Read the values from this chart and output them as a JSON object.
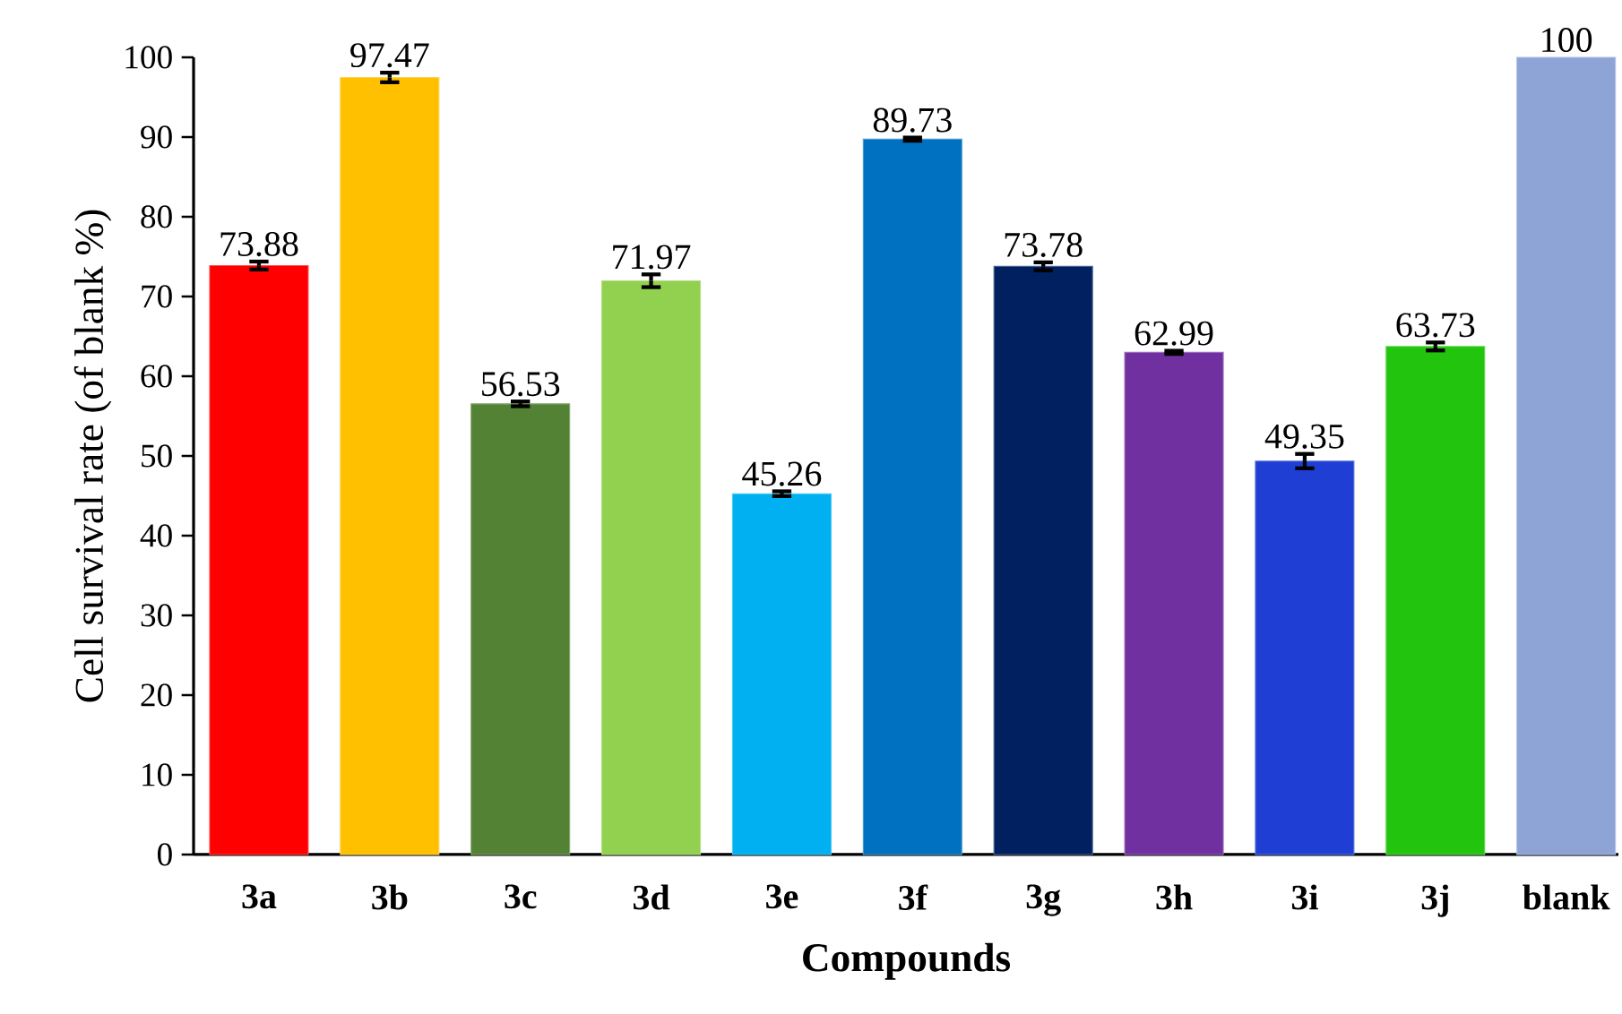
{
  "chart_data": {
    "type": "bar",
    "categories": [
      "3a",
      "3b",
      "3c",
      "3d",
      "3e",
      "3f",
      "3g",
      "3h",
      "3i",
      "3j",
      "blank"
    ],
    "values": [
      73.88,
      97.47,
      56.53,
      71.97,
      45.26,
      89.73,
      73.78,
      62.99,
      49.35,
      63.73,
      100
    ],
    "colors": [
      "#ff0000",
      "#ffc000",
      "#548235",
      "#92d050",
      "#00b0f0",
      "#0070c0",
      "#002060",
      "#7030a0",
      "#1f3fd4",
      "#22c40e",
      "#8ea4d6"
    ],
    "errors": [
      0.5,
      0.6,
      0.3,
      0.8,
      0.3,
      0.2,
      0.5,
      0.2,
      0.9,
      0.5,
      null
    ],
    "data_labels": true,
    "xlabel": "Compounds",
    "ylabel": "Cell survival rate (of blank %)",
    "ylim": [
      0,
      100
    ],
    "yticks": [
      0,
      10,
      20,
      30,
      40,
      50,
      60,
      70,
      80,
      90,
      100
    ]
  }
}
